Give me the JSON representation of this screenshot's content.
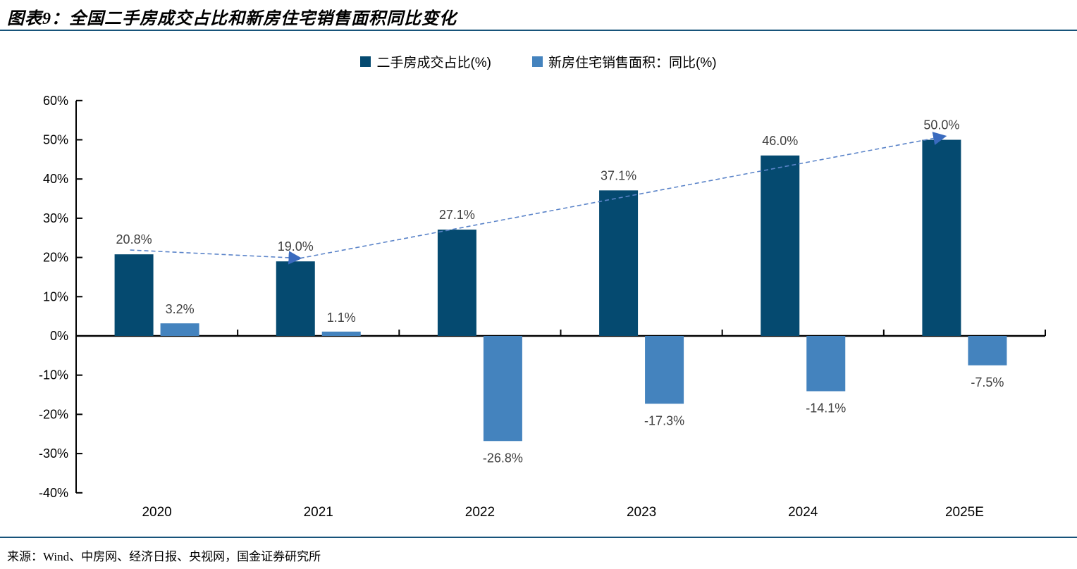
{
  "title": "图表9：全国二手房成交占比和新房住宅销售面积同比变化",
  "source": "来源：Wind、中房网、经济日报、央视网，国金证券研究所",
  "colors": {
    "secondhand_bar": "#054a70",
    "newhome_bar": "#4483be",
    "trend_line": "#5b84c9",
    "trend_arrow": "#3a6bbf",
    "separator_rule": "#17537a",
    "axis": "#000000",
    "value_label": "#404040",
    "tick_label": "#000000"
  },
  "legend": [
    {
      "label": "二手房成交占比(%)",
      "color": "#054a70"
    },
    {
      "label": "新房住宅销售面积：同比(%)",
      "color": "#4483be"
    }
  ],
  "chart_data": {
    "type": "bar",
    "categories": [
      "2020",
      "2021",
      "2022",
      "2023",
      "2024",
      "2025E"
    ],
    "series": [
      {
        "name": "二手房成交占比(%)",
        "color": "#054a70",
        "values": [
          20.8,
          19.0,
          27.1,
          37.1,
          46.0,
          50.0
        ],
        "labels": [
          "20.8%",
          "19.0%",
          "27.1%",
          "37.1%",
          "46.0%",
          "50.0%"
        ]
      },
      {
        "name": "新房住宅销售面积：同比(%)",
        "color": "#4483be",
        "values": [
          3.2,
          1.1,
          -26.8,
          -17.3,
          -14.1,
          -7.5
        ],
        "labels": [
          "3.2%",
          "1.1%",
          "-26.8%",
          "-17.3%",
          "-14.1%",
          "-7.5%"
        ]
      }
    ],
    "ylim": [
      -40,
      60
    ],
    "y_ticks": [
      60,
      50,
      40,
      30,
      20,
      10,
      0,
      -10,
      -20,
      -30,
      -40
    ],
    "y_tick_labels": [
      "60%",
      "50%",
      "40%",
      "30%",
      "20%",
      "10%",
      "0%",
      "-10%",
      "-20%",
      "-30%",
      "-40%"
    ],
    "grid": false,
    "legend_position": "top-center",
    "trend_line": {
      "color": "#5b84c9",
      "arrow_color": "#3a6bbf",
      "points": [
        {
          "category_index": 0,
          "dx": -38,
          "pct": 21.9
        },
        {
          "category_index": 1,
          "dx": -26,
          "pct": 19.8
        },
        {
          "category_index": 5,
          "dx": -28,
          "pct": 50.9
        }
      ]
    }
  }
}
